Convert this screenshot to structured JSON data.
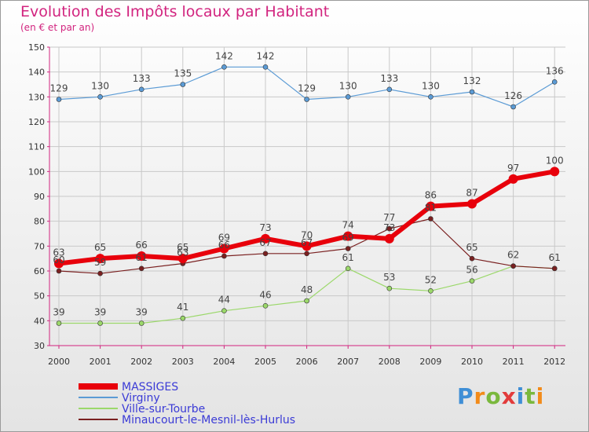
{
  "title": "Evolution des Impôts locaux par Habitant",
  "subtitle": "(en € et par an)",
  "logo": "Proxiti",
  "chart_data": {
    "type": "line",
    "categories": [
      "2000",
      "2001",
      "2002",
      "2003",
      "2004",
      "2005",
      "2006",
      "2007",
      "2008",
      "2009",
      "2010",
      "2011",
      "2012"
    ],
    "ylim": [
      30,
      150
    ],
    "yticks": [
      30,
      40,
      50,
      60,
      70,
      80,
      90,
      100,
      110,
      120,
      130,
      140,
      150
    ],
    "series": [
      {
        "name": "MASSIGES",
        "color": "#e8000b",
        "values": [
          63,
          65,
          66,
          65,
          69,
          73,
          70,
          74,
          73,
          86,
          87,
          97,
          100
        ]
      },
      {
        "name": "Virginy",
        "color": "#5b9bd5",
        "values": [
          129,
          130,
          133,
          135,
          142,
          142,
          129,
          130,
          133,
          130,
          132,
          126,
          136
        ]
      },
      {
        "name": "Ville-sur-Tourbe",
        "color": "#9bd86a",
        "values": [
          39,
          39,
          39,
          41,
          44,
          46,
          48,
          61,
          53,
          52,
          56,
          62,
          61
        ]
      },
      {
        "name": "Minaucourt-le-Mesnil-lès-Hurlus",
        "color": "#7a2020",
        "values": [
          60,
          59,
          61,
          63,
          66,
          67,
          67,
          69,
          77,
          81,
          65,
          62,
          61
        ]
      }
    ],
    "labels": {
      "MASSIGES": [
        "63",
        "65",
        "66",
        "65",
        "69",
        "73",
        "70",
        "74",
        "73",
        "86",
        "87",
        "97",
        "100"
      ],
      "Virginy": [
        "129",
        "130",
        "133",
        "135",
        "142",
        "142",
        "129",
        "130",
        "133",
        "130",
        "132",
        "126",
        "136"
      ],
      "Ville-sur-Tourbe": [
        "39",
        "39",
        "39",
        "41",
        "44",
        "46",
        "48",
        "61",
        "53",
        "52",
        "56",
        "",
        ""
      ],
      "Minaucourt-le-Mesnil-lès-Hurlus": [
        "60",
        "59",
        "61",
        "63",
        "66",
        "67",
        "67",
        "69",
        "77",
        "81",
        "65",
        "62",
        "61"
      ]
    },
    "legend_position": "bottom-left"
  }
}
